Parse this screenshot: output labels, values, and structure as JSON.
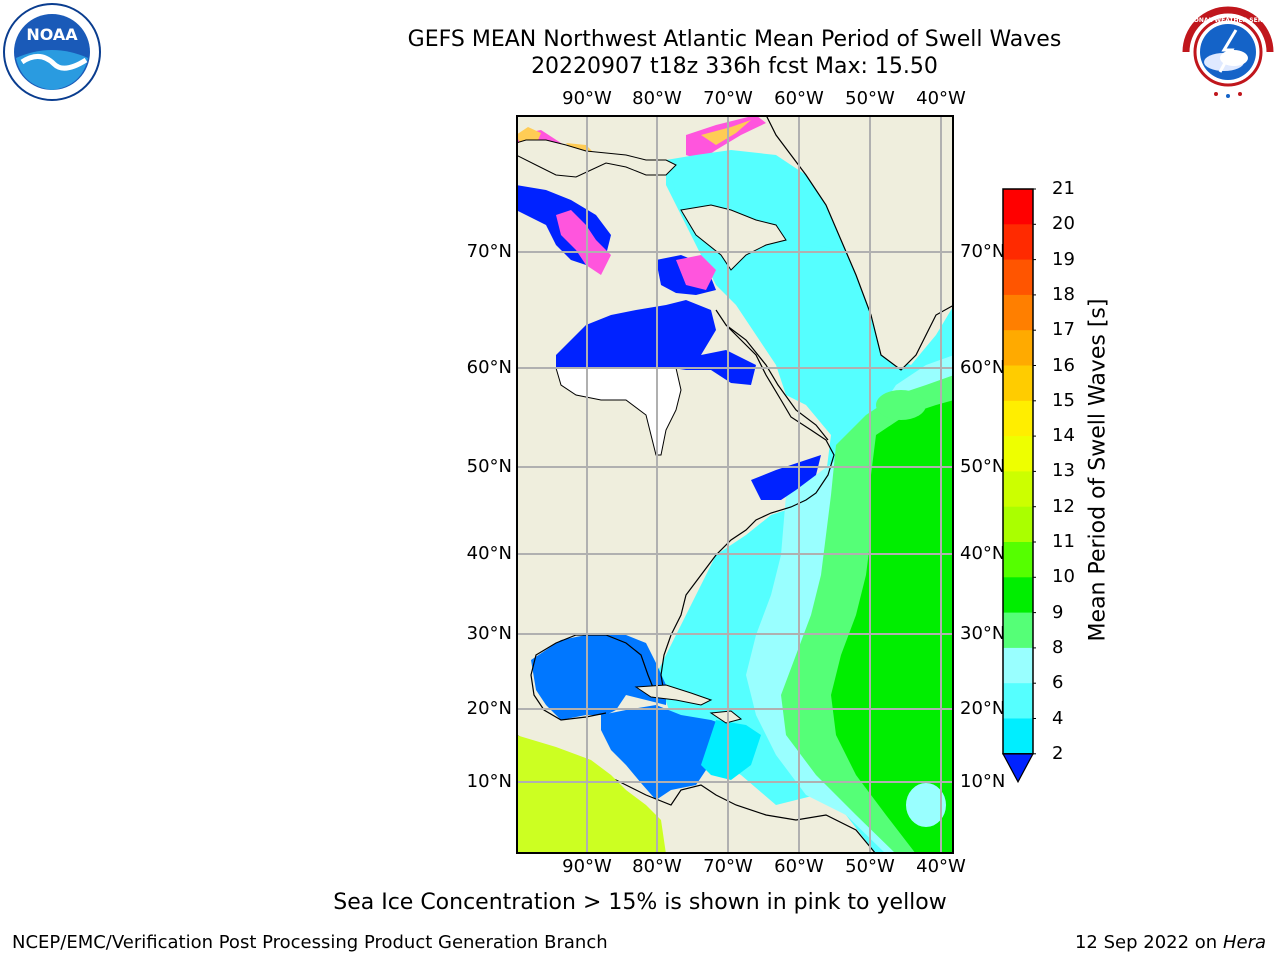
{
  "title_line1": "GEFS MEAN Northwest Atlantic Mean Period of Swell Waves",
  "title_line2": "20220907 t18z 336h fcst   Max: 15.50",
  "lon_labels": [
    "90°W",
    "80°W",
    "70°W",
    "60°W",
    "50°W",
    "40°W"
  ],
  "lat_labels": [
    "70°N",
    "60°N",
    "50°N",
    "40°N",
    "30°N",
    "20°N",
    "10°N"
  ],
  "colorbar": {
    "title": "Mean Period of Swell Waves [s]",
    "ticks": [
      "21",
      "20",
      "19",
      "18",
      "17",
      "16",
      "15",
      "14",
      "13",
      "12",
      "11",
      "10",
      "9",
      "8",
      "6",
      "4",
      "2"
    ],
    "colors": [
      "#ff0000",
      "#ff2a00",
      "#ff5500",
      "#ff7f00",
      "#ffaa00",
      "#ffcc00",
      "#ffee00",
      "#eeff00",
      "#ccff00",
      "#aaff00",
      "#55ff00",
      "#00ee00",
      "#55ff77",
      "#99ffff",
      "#55ffff",
      "#00eeff",
      "#0077ff"
    ],
    "under_color": "#0022ff"
  },
  "note": "Sea Ice Concentration > 15% is shown in pink to yellow",
  "credit_left": "NCEP/EMC/Verification Post Processing Product Generation Branch",
  "credit_date": "12 Sep 2022 on",
  "credit_host": "Hera",
  "logo_noaa": "NOAA",
  "logo_nws": "NATIONAL WEATHER SERVICE",
  "colors": {
    "land": "#efeedd",
    "grid": "#b0b0b0",
    "ocean_swell_low": "#55ffff",
    "ocean_swell_mid": "#00ee00",
    "sea_ice_pink": "#ff55dd",
    "sea_ice_yellow": "#ffcc55"
  }
}
